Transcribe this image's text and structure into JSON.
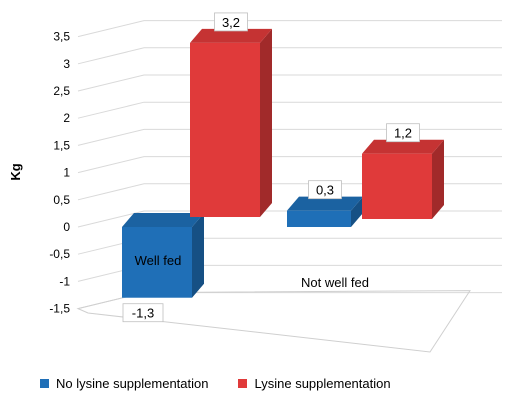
{
  "chart_data": {
    "type": "bar",
    "ylabel": "Kg",
    "ylim": [
      -1.5,
      3.5
    ],
    "yticks": [
      "3,5",
      "3",
      "2,5",
      "2",
      "1,5",
      "1",
      "0,5",
      "0",
      "-0,5",
      "-1",
      "-1,5"
    ],
    "categories": [
      "Well fed",
      "Not well fed"
    ],
    "series": [
      {
        "name": "No lysine supplementation",
        "values": [
          -1.3,
          0.3
        ],
        "labels": [
          "-1,3",
          "0,3"
        ],
        "color": "#1f6fb7"
      },
      {
        "name": "Lysine supplementation",
        "values": [
          3.2,
          1.2
        ],
        "labels": [
          "3,2",
          "1,2"
        ],
        "color": "#e03a3a"
      }
    ],
    "legend": "bottom",
    "grid": true,
    "view": "3d"
  }
}
